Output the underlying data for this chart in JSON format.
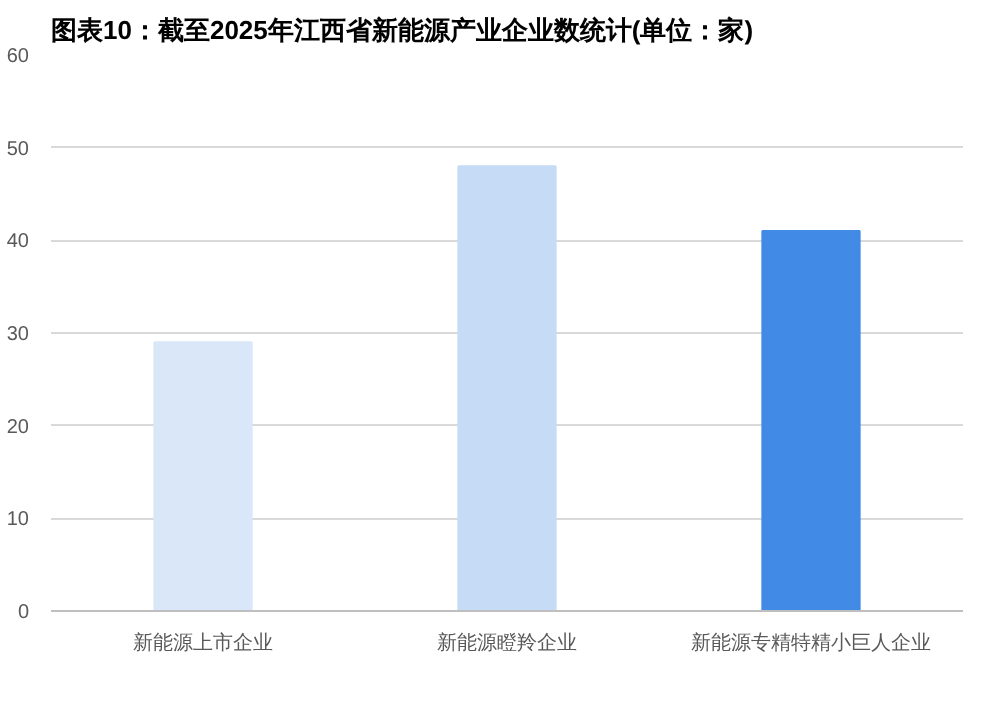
{
  "chart_data": {
    "type": "bar",
    "title": "图表10：截至2025年江西省新能源产业企业数统计(单位：家)",
    "categories": [
      "新能源上市企业",
      "新能源瞪羚企业",
      "新能源专精特精小巨人企业"
    ],
    "values": [
      29,
      48,
      41
    ],
    "colors": [
      "#d9e7f8",
      "#c5dbf6",
      "#418ae6"
    ],
    "ylim": [
      0,
      60
    ],
    "yticks": [
      0,
      10,
      20,
      30,
      40,
      50,
      60
    ],
    "grid": "y"
  }
}
